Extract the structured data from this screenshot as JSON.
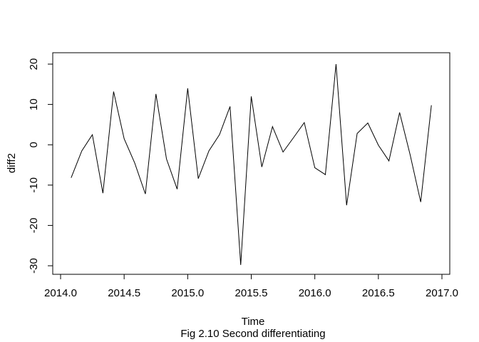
{
  "chart_data": {
    "type": "line",
    "title": "",
    "xlabel": "Time",
    "ylabel": "diff2",
    "caption": "Fig 2.10 Second differentiating",
    "xlim": [
      2014.0,
      2017.0
    ],
    "ylim": [
      -30,
      20
    ],
    "xticks": [
      2014.0,
      2014.5,
      2015.0,
      2015.5,
      2016.0,
      2016.5,
      2017.0
    ],
    "xtick_labels": [
      "2014.0",
      "2014.5",
      "2015.0",
      "2015.5",
      "2016.0",
      "2016.5",
      "2017.0"
    ],
    "yticks": [
      -30,
      -20,
      -10,
      0,
      10,
      20
    ],
    "ytick_labels": [
      "-30",
      "-20",
      "-10",
      "0",
      "10",
      "20"
    ],
    "grid": false,
    "line_color": "#000000",
    "series": [
      {
        "x": [
          2014.083,
          2014.167,
          2014.25,
          2014.333,
          2014.417,
          2014.5,
          2014.583,
          2014.667,
          2014.75,
          2014.833,
          2014.917,
          2015.0,
          2015.083,
          2015.167,
          2015.25,
          2015.333,
          2015.417,
          2015.5,
          2015.583,
          2015.667,
          2015.75,
          2015.833,
          2015.917,
          2016.0,
          2016.083,
          2016.167,
          2016.25,
          2016.333,
          2016.417,
          2016.5,
          2016.583,
          2016.667,
          2016.75,
          2016.833,
          2016.917
        ],
        "values": [
          -8.2,
          -1.5,
          2.5,
          -12.0,
          13.2,
          1.5,
          -4.5,
          -12.2,
          12.6,
          -3.5,
          -11.0,
          14.0,
          -8.4,
          -1.5,
          2.5,
          9.5,
          -29.8,
          12.0,
          -5.5,
          4.5,
          -1.8,
          1.8,
          5.5,
          -5.7,
          -7.4,
          20.0,
          -15.0,
          2.8,
          5.4,
          -0.1,
          -4.0,
          8.0,
          -2.5,
          -14.2,
          9.8
        ]
      }
    ]
  }
}
